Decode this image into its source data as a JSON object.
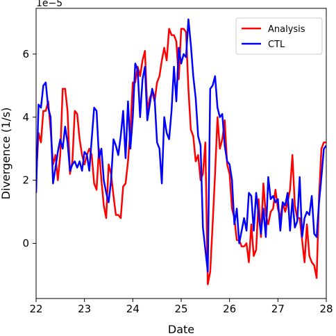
{
  "chart_data": {
    "type": "line",
    "xlabel": "Date",
    "ylabel": "Divergence (1/s)",
    "y_offset_label": "1e−5",
    "xlim": [
      22,
      28
    ],
    "ylim": [
      -1.75,
      7.45
    ],
    "x_ticks": [
      22,
      23,
      24,
      25,
      26,
      27,
      28
    ],
    "y_ticks": [
      0,
      2,
      4,
      6
    ],
    "grid": false,
    "legend": "top-right",
    "series": [
      {
        "name": "Analysis",
        "color": "#ff0000",
        "x": [
          22.0,
          22.05,
          22.1,
          22.15,
          22.2,
          22.25,
          22.3,
          22.35,
          22.4,
          22.45,
          22.5,
          22.55,
          22.6,
          22.65,
          22.7,
          22.75,
          22.8,
          22.85,
          22.9,
          22.95,
          23.0,
          23.05,
          23.1,
          23.15,
          23.2,
          23.25,
          23.3,
          23.35,
          23.4,
          23.45,
          23.5,
          23.55,
          23.6,
          23.65,
          23.7,
          23.75,
          23.8,
          23.85,
          23.9,
          23.95,
          24.0,
          24.05,
          24.1,
          24.15,
          24.2,
          24.25,
          24.3,
          24.35,
          24.4,
          24.45,
          24.5,
          24.55,
          24.6,
          24.65,
          24.7,
          24.75,
          24.8,
          24.85,
          24.9,
          24.95,
          25.0,
          25.05,
          25.1,
          25.15,
          25.2,
          25.25,
          25.3,
          25.35,
          25.4,
          25.45,
          25.5,
          25.55,
          25.6,
          25.65,
          25.7,
          25.75,
          25.8,
          25.85,
          25.9,
          25.95,
          26.0,
          26.05,
          26.1,
          26.15,
          26.2,
          26.25,
          26.3,
          26.35,
          26.4,
          26.45,
          26.5,
          26.55,
          26.6,
          26.65,
          26.7,
          26.75,
          26.8,
          26.85,
          26.9,
          26.95,
          27.0,
          27.05,
          27.1,
          27.15,
          27.2,
          27.25,
          27.3,
          27.35,
          27.4,
          27.45,
          27.5,
          27.55,
          27.6,
          27.65,
          27.7,
          27.75,
          27.8,
          27.85,
          27.9,
          27.95,
          28.0
        ],
        "values": [
          2.1,
          3.5,
          3.2,
          4.2,
          4.2,
          4.5,
          3.6,
          2.5,
          2.8,
          2.0,
          2.8,
          4.9,
          4.9,
          4.2,
          2.2,
          2.6,
          4.2,
          4.1,
          3.3,
          2.8,
          2.5,
          2.8,
          3.0,
          2.8,
          1.9,
          1.7,
          3.0,
          2.0,
          1.2,
          0.8,
          2.5,
          2.2,
          1.5,
          0.9,
          0.9,
          0.8,
          1.8,
          1.9,
          2.6,
          3.6,
          5.1,
          5.1,
          5.6,
          5.3,
          5.8,
          6.1,
          4.2,
          4.6,
          4.8,
          4.5,
          5.1,
          5.3,
          5.8,
          6.2,
          5.8,
          6.8,
          6.6,
          6.6,
          6.4,
          5.2,
          6.8,
          6.8,
          6.7,
          4.9,
          3.6,
          3.4,
          2.6,
          2.8,
          2.0,
          2.2,
          3.2,
          -1.3,
          -0.9,
          0.6,
          2.2,
          4.0,
          3.0,
          3.3,
          3.9,
          2.5,
          2.2,
          1.1,
          0.8,
          0.1,
          0.1,
          -0.1,
          -0.1,
          0.0,
          -0.6,
          0.6,
          -0.4,
          -0.2,
          1.4,
          0.2,
          1.9,
          0.9,
          0.6,
          1.0,
          1.1,
          1.7,
          1.1,
          0.8,
          1.3,
          1.0,
          1.3,
          1.7,
          2.8,
          1.2,
          0.8,
          0.8,
          0.1,
          -0.6,
          0.6,
          -0.4,
          -0.6,
          -0.7,
          -1.1,
          1.5,
          3.0,
          3.2,
          3.2
        ]
      },
      {
        "name": "CTL",
        "color": "#0000ff",
        "x": [
          22.0,
          22.05,
          22.1,
          22.15,
          22.2,
          22.25,
          22.3,
          22.35,
          22.4,
          22.45,
          22.5,
          22.55,
          22.6,
          22.65,
          22.7,
          22.75,
          22.8,
          22.85,
          22.9,
          22.95,
          23.0,
          23.05,
          23.1,
          23.15,
          23.2,
          23.25,
          23.3,
          23.35,
          23.4,
          23.45,
          23.5,
          23.55,
          23.6,
          23.65,
          23.7,
          23.75,
          23.8,
          23.85,
          23.9,
          23.95,
          24.0,
          24.05,
          24.1,
          24.15,
          24.2,
          24.25,
          24.3,
          24.35,
          24.4,
          24.45,
          24.5,
          24.55,
          24.6,
          24.65,
          24.7,
          24.75,
          24.8,
          24.85,
          24.9,
          24.95,
          25.0,
          25.05,
          25.1,
          25.15,
          25.2,
          25.25,
          25.3,
          25.35,
          25.4,
          25.45,
          25.5,
          25.55,
          25.6,
          25.65,
          25.7,
          25.75,
          25.8,
          25.85,
          25.9,
          25.95,
          26.0,
          26.05,
          26.1,
          26.15,
          26.2,
          26.25,
          26.3,
          26.35,
          26.4,
          26.45,
          26.5,
          26.55,
          26.6,
          26.65,
          26.7,
          26.75,
          26.8,
          26.85,
          26.9,
          26.95,
          27.0,
          27.05,
          27.1,
          27.15,
          27.2,
          27.25,
          27.3,
          27.35,
          27.4,
          27.45,
          27.5,
          27.55,
          27.6,
          27.65,
          27.7,
          27.75,
          27.8,
          27.85,
          27.9,
          27.95,
          28.0
        ],
        "values": [
          1.6,
          4.4,
          4.3,
          5.0,
          5.1,
          4.3,
          4.0,
          1.9,
          2.4,
          2.9,
          3.3,
          3.0,
          3.7,
          3.2,
          2.3,
          2.5,
          2.6,
          2.4,
          2.6,
          2.3,
          2.9,
          2.8,
          2.3,
          3.3,
          4.3,
          4.2,
          2.7,
          3.0,
          2.0,
          1.6,
          1.3,
          2.0,
          3.3,
          3.1,
          2.8,
          3.4,
          4.2,
          2.7,
          4.5,
          3.0,
          4.0,
          5.7,
          5.5,
          4.0,
          5.2,
          5.6,
          3.9,
          4.4,
          4.9,
          4.6,
          3.2,
          3.0,
          1.9,
          4.0,
          3.5,
          3.3,
          4.2,
          5.6,
          4.5,
          6.2,
          5.7,
          6.0,
          5.9,
          7.1,
          6.3,
          5.3,
          4.6,
          3.4,
          3.1,
          0.5,
          -0.2,
          -0.9,
          4.9,
          5.0,
          5.3,
          4.3,
          4.0,
          4.1,
          3.1,
          2.6,
          2.5,
          2.0,
          0.6,
          1.1,
          0.0,
          0.4,
          0.8,
          0.4,
          1.6,
          1.5,
          0.4,
          1.6,
          0.9,
          0.3,
          1.1,
          0.2,
          2.1,
          1.4,
          1.5,
          1.3,
          1.4,
          0.4,
          1.3,
          1.2,
          1.6,
          0.4,
          1.4,
          0.5,
          0.7,
          2.1,
          0.2,
          0.8,
          1.0,
          0.9,
          1.5,
          0.3,
          0.2,
          1.3,
          2.1,
          3.0,
          3.1
        ]
      }
    ]
  }
}
